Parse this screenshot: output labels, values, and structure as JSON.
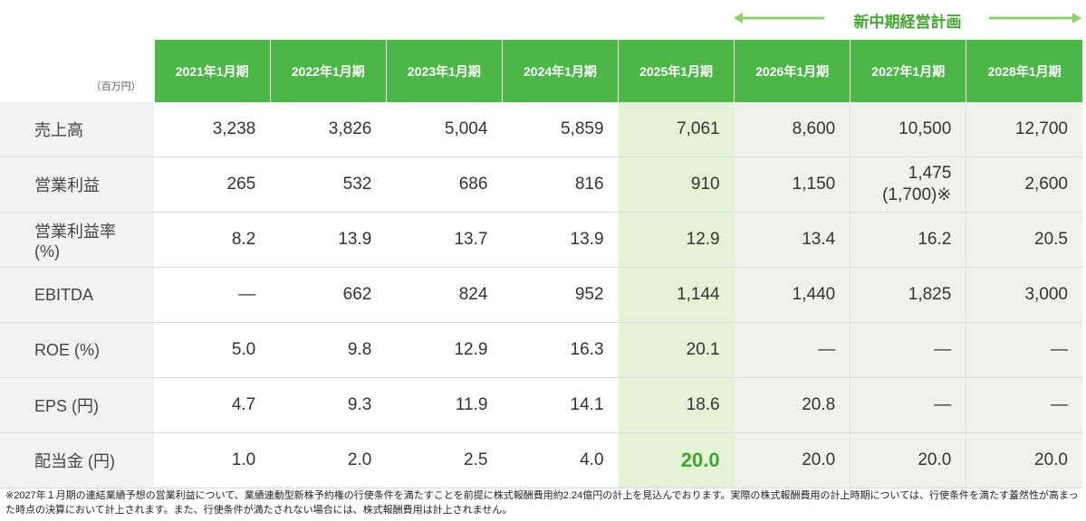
{
  "banner": "新中期経営計画",
  "unit": "（百万円）",
  "headers": [
    "2021年1月期",
    "2022年1月期",
    "2023年1月期",
    "2024年1月期",
    "2025年1月期",
    "2026年1月期",
    "2027年1月期",
    "2028年1月期"
  ],
  "rows": [
    {
      "label": "売上高",
      "values": [
        "3,238",
        "3,826",
        "5,004",
        "5,859",
        "7,061",
        "8,600",
        "10,500",
        "12,700"
      ]
    },
    {
      "label": "営業利益",
      "values": [
        "265",
        "532",
        "686",
        "816",
        "910",
        "1,150",
        [
          "1,475",
          "(1,700)※"
        ],
        "2,600"
      ]
    },
    {
      "label": "営業利益率(%)",
      "values": [
        "8.2",
        "13.9",
        "13.7",
        "13.9",
        "12.9",
        "13.4",
        "16.2",
        "20.5"
      ]
    },
    {
      "label": "EBITDA",
      "values": [
        "—",
        "662",
        "824",
        "952",
        "1,144",
        "1,440",
        "1,825",
        "3,000"
      ]
    },
    {
      "label": "ROE (%)",
      "values": [
        "5.0",
        "9.8",
        "12.9",
        "16.3",
        "20.1",
        "—",
        "—",
        "—"
      ]
    },
    {
      "label": "EPS (円)",
      "values": [
        "4.7",
        "9.3",
        "11.9",
        "14.1",
        "18.6",
        "20.8",
        "—",
        "—"
      ]
    },
    {
      "label": "配当金 (円)",
      "values": [
        "1.0",
        "2.0",
        "2.5",
        "4.0",
        "20.0",
        "20.0",
        "20.0",
        "20.0"
      ]
    }
  ],
  "footnote": "※2027年１月期の連結業績予想の営業利益について、業績連動型新株予約権の行使条件を満たすことを前提に株式報酬費用約2.24億円の計上を見込んでおります。実際の株式報酬費用の計上時期については、行使条件を満たす蓋然性が高まった時点の決算において計上されます。また、行使条件が満たされない場合には、株式報酬費用は計上されません。"
}
